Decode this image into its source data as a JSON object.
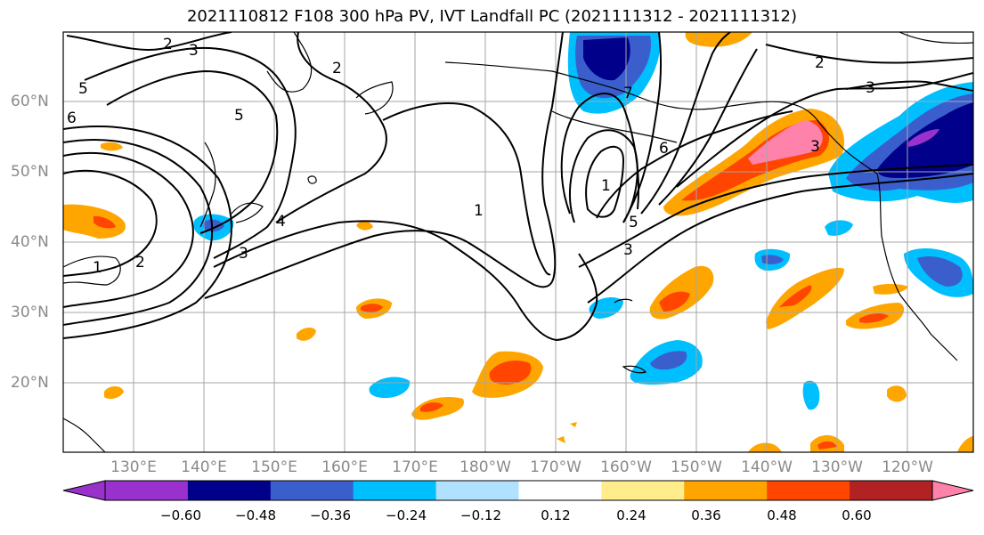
{
  "title": "2021110812 F108 300 hPa PV, IVT Landfall PC (2021111312 - 2021111312)",
  "map": {
    "lon_labels": [
      "130°E",
      "140°E",
      "150°E",
      "160°E",
      "170°E",
      "180°W",
      "170°W",
      "160°W",
      "150°W",
      "140°W",
      "130°W",
      "120°W"
    ],
    "lat_labels": [
      "60°N",
      "50°N",
      "40°N",
      "30°N",
      "20°N"
    ],
    "contour_labels": [
      "2",
      "3",
      "5",
      "6",
      "2",
      "5",
      "4",
      "3",
      "1",
      "2",
      "1",
      "1",
      "7",
      "6",
      "5",
      "3",
      "2",
      "3",
      "3"
    ]
  },
  "colorbar": {
    "ticks": [
      "−0.60",
      "−0.48",
      "−0.36",
      "−0.24",
      "−0.12",
      "0.12",
      "0.24",
      "0.36",
      "0.48",
      "0.60"
    ],
    "colors": [
      "#9932cc",
      "#00008b",
      "#3a5fcd",
      "#00bfff",
      "#b0e2ff",
      "#ffffff",
      "#ffec8b",
      "#ffa500",
      "#ff4500",
      "#b22222",
      "#ff82ab",
      "#ff82ab"
    ]
  }
}
